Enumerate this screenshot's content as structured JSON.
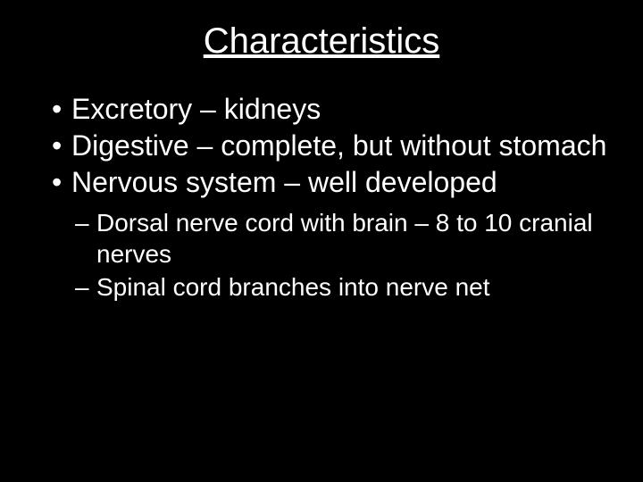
{
  "slide": {
    "title": "Characteristics",
    "bullets": [
      "Excretory – kidneys",
      "Digestive – complete, but without stomach",
      "Nervous system – well developed"
    ],
    "sub_bullets": [
      "Dorsal nerve cord with brain – 8 to 10 cranial nerves",
      "Spinal cord branches into nerve net"
    ]
  },
  "styling": {
    "background_color": "#000000",
    "text_color": "#ffffff",
    "title_fontsize": 40,
    "bullet_fontsize": 32,
    "sub_bullet_fontsize": 28,
    "title_underline": true,
    "font_family": "Arial"
  }
}
